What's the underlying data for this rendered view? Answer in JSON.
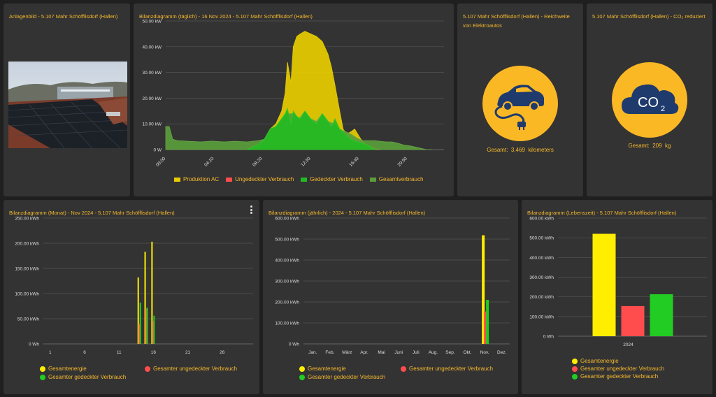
{
  "panels": {
    "plant_image": {
      "title": "Anlagenbild - 5.107 Mahr Schöfflisdorf (Hallen)"
    },
    "daily": {
      "title": "Bilanzdiagramm (täglich) - 16 Nov 2024 - 5.107 Mahr Schöfflisdorf (Hallen)",
      "legend": [
        "Produktion AC",
        "Ungedeckter Verbrauch",
        "Gedeckter Verbrauch",
        "Gesamtverbrauch"
      ]
    },
    "ev_range": {
      "title": "5.107 Mahr Schöfflisdorf (Hallen) - Reichweite von Elektroautos",
      "label": "Gesamt:",
      "value": "3,469",
      "unit": "kilometers"
    },
    "co2": {
      "title": "5.107 Mahr Schöfflisdorf (Hallen) - CO₂ reduziert",
      "icon_text": "CO",
      "icon_sub": "2",
      "label": "Gesamt:",
      "value": "209",
      "unit": "kg"
    },
    "monthly": {
      "title": "Bilanzdiagramm (Monat) - Nov 2024 - 5.107 Mahr Schöfflisdorf (Hallen)",
      "legend": [
        "Gesamtenergie",
        "Gesamter ungedeckter Verbrauch",
        "Gesamter gedeckter Verbrauch"
      ]
    },
    "yearly": {
      "title": "Bilanzdiagramm (jährlich) - 2024 - 5.107 Mahr Schöfflisdorf (Hallen)",
      "legend": [
        "Gesamtenergie",
        "Gesamter ungedeckter Verbrauch",
        "Gesamter gedeckter Verbrauch"
      ]
    },
    "lifetime": {
      "title": "Bilanzdiagramm (Lebenszeit) - 5.107 Mahr Schöfflisdorf (Hallen)",
      "legend": [
        "Gesamtenergie",
        "Gesamter ungedeckter Verbrauch",
        "Gesamter gedeckter Verbrauch"
      ]
    }
  },
  "colors": {
    "production": "#e8cc00",
    "uncovered": "#ff4d4d",
    "covered": "#22bb22",
    "total": "#5a9e3a",
    "accent": "#f5b82e"
  },
  "icons": {
    "ev": "electric-car-icon",
    "co2": "co2-cloud-icon",
    "menu": "kebab-menu-icon"
  },
  "chart_data": [
    {
      "type": "area",
      "title": "Bilanzdiagramm (täglich) - 16 Nov 2024 - 5.107 Mahr Schöfflisdorf (Hallen)",
      "ytick_labels": [
        "0 W",
        "10.00 kW",
        "20.00 kW",
        "30.00 kW",
        "40.00 kW",
        "50.00 kW"
      ],
      "ylim": [
        0,
        50
      ],
      "xtick_labels": [
        "00:00",
        "04:10",
        "08:20",
        "12:30",
        "16:40",
        "20:50"
      ],
      "xlim": [
        0,
        24
      ],
      "grid": true,
      "legend_position": "bottom",
      "series": [
        {
          "name": "Produktion AC",
          "x": [
            7.0,
            8.0,
            8.5,
            9.0,
            9.5,
            10.0,
            10.3,
            10.5,
            10.8,
            11.0,
            11.3,
            11.6,
            12.0,
            12.5,
            13.0,
            13.5,
            14.0,
            14.3,
            14.6,
            15.0,
            15.3,
            15.6,
            16.0,
            16.3,
            16.7,
            17.0,
            17.5,
            18.0,
            18.5
          ],
          "y": [
            0,
            2,
            4,
            8,
            10,
            15,
            22,
            34,
            26,
            40,
            44,
            45,
            46,
            45,
            44,
            42,
            37,
            32,
            25,
            15,
            8,
            6,
            7,
            8,
            5,
            3,
            1.5,
            0.5,
            0
          ]
        },
        {
          "name": "Ungedeckter Verbrauch",
          "x": [],
          "y": []
        },
        {
          "name": "Gedeckter Verbrauch",
          "x": [
            7.0,
            8.0,
            8.5,
            9.0,
            9.5,
            10.0,
            10.3,
            10.5,
            10.8,
            11.0,
            11.3,
            11.6,
            12.0,
            12.5,
            13.0,
            13.5,
            14.0,
            14.3,
            14.6,
            15.0,
            15.5,
            16.0,
            16.5,
            17.0,
            17.5,
            18.0
          ],
          "y": [
            0,
            2,
            4,
            8,
            9,
            12,
            14,
            16,
            10,
            15,
            13,
            12,
            15,
            12,
            10,
            14,
            11,
            9,
            12,
            8,
            6,
            4,
            3,
            2.5,
            1.5,
            0
          ]
        },
        {
          "name": "Gesamtverbrauch",
          "x": [
            0,
            0.3,
            0.6,
            1.0,
            2.0,
            3.0,
            4.0,
            5.0,
            6.0,
            7.0,
            8.0,
            8.5,
            9.0,
            9.5,
            10.0,
            10.5,
            11.0,
            11.5,
            12.0,
            12.5,
            13.0,
            13.5,
            14.0,
            14.5,
            15.0,
            15.5,
            16.0,
            16.5,
            17.0,
            17.5,
            18.0,
            18.5,
            19.0,
            19.5,
            20.0,
            20.5,
            21.0,
            21.5,
            22.0,
            22.5,
            23.0
          ],
          "y": [
            9,
            9,
            4,
            3.5,
            3.2,
            3,
            3.3,
            3,
            3.2,
            3,
            3.5,
            4,
            8,
            9,
            12,
            14,
            14,
            12,
            15,
            12,
            11,
            14,
            11,
            10,
            8,
            7,
            6,
            4.5,
            3.5,
            3.5,
            3.5,
            3.2,
            3,
            3,
            2.5,
            1.8,
            1.5,
            1,
            0.5,
            0,
            0
          ]
        }
      ]
    },
    {
      "type": "bar",
      "title": "Bilanzdiagramm (Monat) - Nov 2024 - 5.107 Mahr Schöfflisdorf (Hallen)",
      "ytick_labels": [
        "0 Wh",
        "50.00 kWh",
        "100.00 kWh",
        "150.00 kWh",
        "200.00 kWh",
        "250.00 kWh"
      ],
      "ylim": [
        0,
        250
      ],
      "xtick_labels": [
        "1",
        "6",
        "11",
        "16",
        "21",
        "26"
      ],
      "categories": [
        14,
        15,
        16
      ],
      "grid": true,
      "legend_position": "bottom-left",
      "series": [
        {
          "name": "Gesamtenergie",
          "values": [
            132,
            183,
            203
          ]
        },
        {
          "name": "Gesamter ungedeckter Verbrauch",
          "values": [
            40,
            70,
            45
          ]
        },
        {
          "name": "Gesamter gedeckter Verbrauch",
          "values": [
            82,
            72,
            56
          ]
        }
      ]
    },
    {
      "type": "bar",
      "title": "Bilanzdiagramm (jährlich) - 2024 - 5.107 Mahr Schöfflisdorf (Hallen)",
      "ytick_labels": [
        "0 Wh",
        "100.00 kWh",
        "200.00 kWh",
        "300.00 kWh",
        "400.00 kWh",
        "500.00 kWh",
        "600.00 kWh"
      ],
      "ylim": [
        0,
        600
      ],
      "categories": [
        "Jan.",
        "Feb.",
        "März",
        "Apr.",
        "Mai",
        "Juni",
        "Juli",
        "Aug.",
        "Sep.",
        "Okt.",
        "Nov.",
        "Dez."
      ],
      "grid": true,
      "legend_position": "bottom-left",
      "series": [
        {
          "name": "Gesamtenergie",
          "values": [
            0,
            0,
            0,
            0,
            0,
            0,
            0,
            0,
            0,
            0,
            518,
            0
          ]
        },
        {
          "name": "Gesamter ungedeckter Verbrauch",
          "values": [
            0,
            0,
            0,
            0,
            0,
            0,
            0,
            0,
            0,
            0,
            155,
            0
          ]
        },
        {
          "name": "Gesamter gedeckter Verbrauch",
          "values": [
            0,
            0,
            0,
            0,
            0,
            0,
            0,
            0,
            0,
            0,
            210,
            0
          ]
        }
      ]
    },
    {
      "type": "bar",
      "title": "Bilanzdiagramm (Lebenszeit) - 5.107 Mahr Schöfflisdorf (Hallen)",
      "ytick_labels": [
        "0 Wh",
        "100.00 kWh",
        "200.00 kWh",
        "300.00 kWh",
        "400.00 kWh",
        "500.00 kWh",
        "600.00 kWh"
      ],
      "ylim": [
        0,
        600
      ],
      "categories": [
        "2024"
      ],
      "grid": true,
      "legend_position": "bottom",
      "series": [
        {
          "name": "Gesamtenergie",
          "values": [
            520
          ]
        },
        {
          "name": "Gesamter ungedeckter Verbrauch",
          "values": [
            153
          ]
        },
        {
          "name": "Gesamter gedeckter Verbrauch",
          "values": [
            213
          ]
        }
      ]
    }
  ]
}
